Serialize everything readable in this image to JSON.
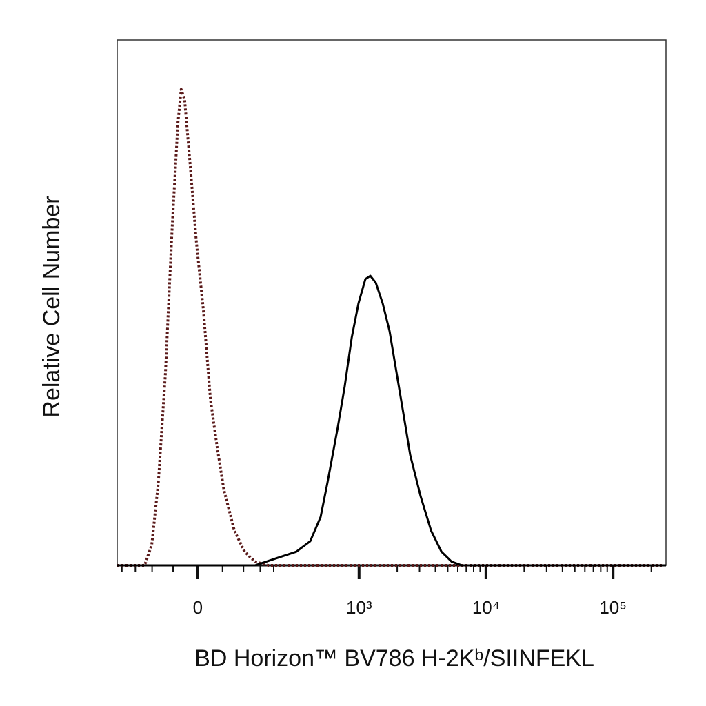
{
  "chart_data": {
    "type": "histogram_overlay",
    "x_label": "BD Horizon™ BV786 H-2Kᵇ/SIINFEKL",
    "y_label": "Relative Cell Number",
    "xscale": {
      "type": "asinh",
      "linear_width": 108
    },
    "xlim": [
      -220,
      261000
    ],
    "ylim": [
      0,
      100
    ],
    "xticks": [
      0,
      {
        "value": 1000,
        "label": "10³"
      },
      {
        "value": 10000,
        "label": "10⁴"
      },
      {
        "value": 100000,
        "label": "10⁵"
      }
    ],
    "xminorticks": [
      -200,
      -150,
      -100,
      -50,
      50,
      100,
      150,
      200,
      2000,
      3000,
      4000,
      5000,
      6000,
      7000,
      8000,
      9000,
      20000,
      30000,
      40000,
      50000,
      60000,
      70000,
      80000,
      90000,
      200000
    ],
    "series": [
      {
        "color": "#5a1a1a",
        "style": "dotted",
        "x": [
          -220,
          -121,
          -101,
          -84,
          -67,
          -52,
          -40,
          -33,
          -26,
          -16,
          -3,
          11,
          25,
          39,
          53,
          77,
          103,
          133,
          179,
          770,
          9430,
          242000
        ],
        "values": [
          0,
          0,
          3.9,
          15.7,
          36.7,
          64.3,
          84,
          90.6,
          88.6,
          77.4,
          61.7,
          48.6,
          31.5,
          22.3,
          14.4,
          6.6,
          2.6,
          0.7,
          0,
          0,
          0,
          0
        ]
      },
      {
        "color": "#000000",
        "style": "solid",
        "x": [
          -220,
          133,
          208,
          313,
          407,
          494,
          560,
          677,
          770,
          874,
          990,
          1123,
          1227,
          1356,
          1536,
          1740,
          1975,
          2240,
          2535,
          3063,
          3698,
          4462,
          5370,
          6480,
          261000
        ],
        "values": [
          0,
          0,
          1.3,
          2.6,
          4.6,
          9.2,
          15.7,
          26.2,
          34.1,
          43.3,
          49.9,
          54.5,
          55.1,
          53.8,
          49.9,
          44.6,
          36.7,
          28.9,
          21,
          13.1,
          6.6,
          2.6,
          0.7,
          0,
          0
        ]
      }
    ]
  }
}
